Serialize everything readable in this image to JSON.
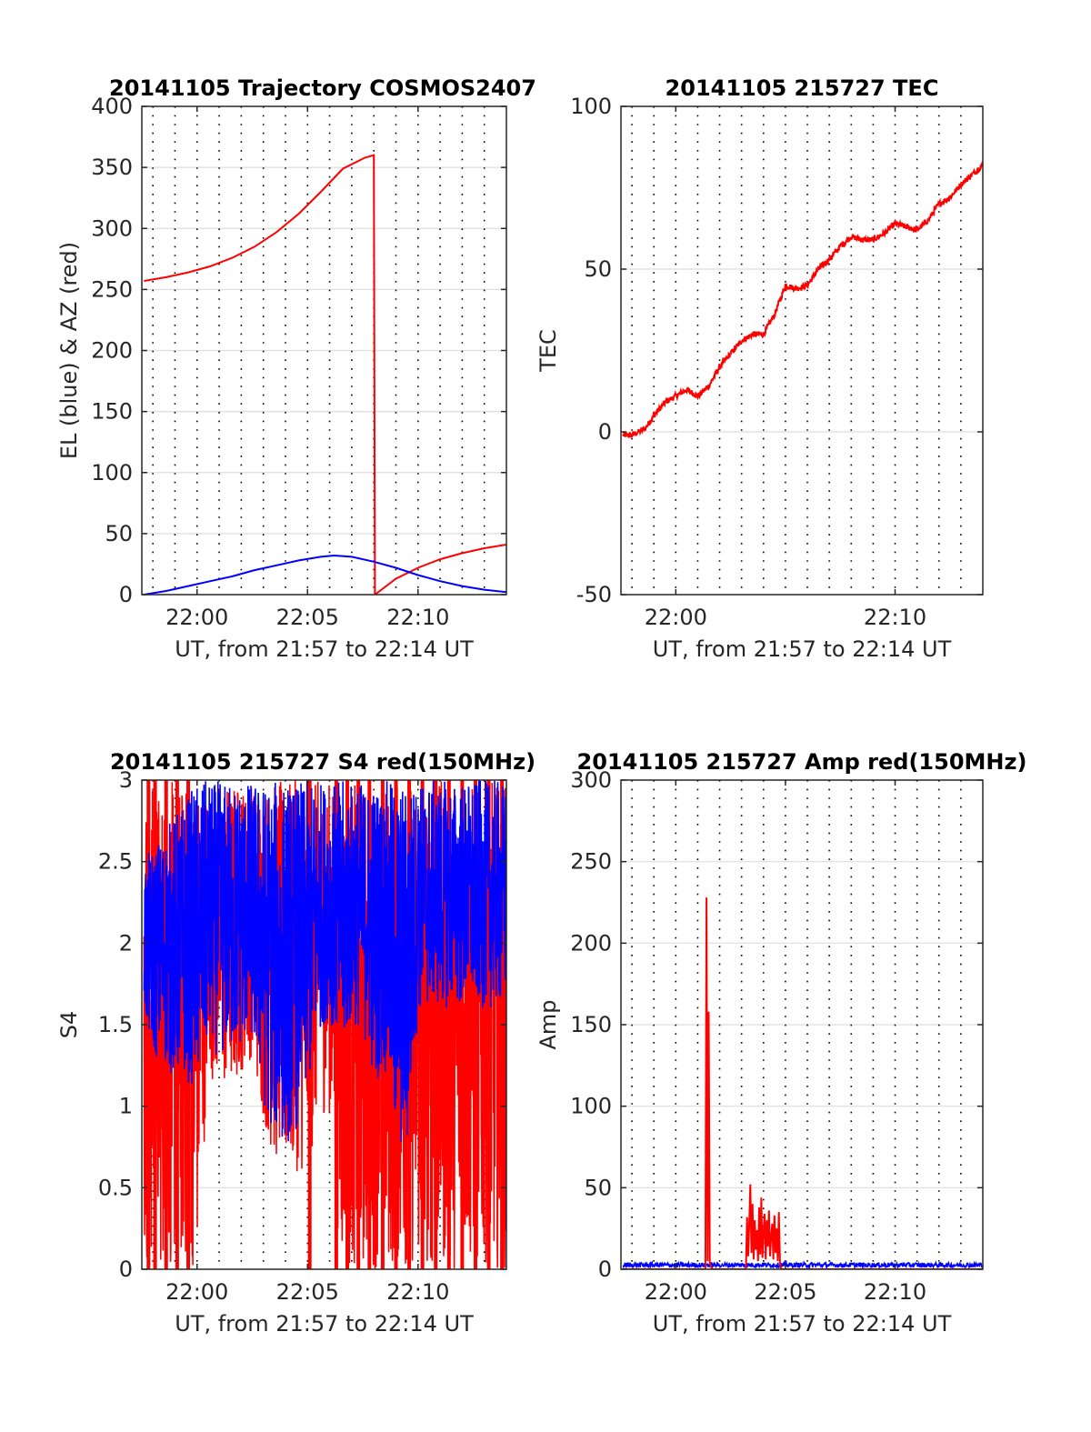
{
  "chart_data": [
    {
      "id": "trajectory",
      "type": "line",
      "title": "20141105 Trajectory COSMOS2407",
      "xlabel": "UT, from 21:57 to 22:14 UT",
      "ylabel": "EL (blue) & AZ (red)",
      "xlim_min": [
        1317.5,
        1334.0
      ],
      "ylim": [
        0,
        400
      ],
      "yticks": [
        0,
        50,
        100,
        150,
        200,
        250,
        300,
        350,
        400
      ],
      "ytick_labels": [
        "0",
        "50",
        "100",
        "150",
        "200",
        "250",
        "300",
        "350",
        "400"
      ],
      "xtick_labels": [
        "22:00",
        "22:05",
        "22:10"
      ],
      "xticks_min": [
        1320,
        1325,
        1330
      ],
      "grid": true,
      "minor_x_grid_step_min": 1,
      "series": [
        {
          "color": "#ff0000",
          "kind": "line",
          "x": [
            1317.6,
            1318.6,
            1319.6,
            1320.6,
            1321.6,
            1322.6,
            1323.6,
            1324.6,
            1325.6,
            1326.6,
            1327.6,
            1328.0,
            1328.05,
            1329.0,
            1330.0,
            1331.0,
            1332.0,
            1333.0,
            1334.0
          ],
          "y": [
            257,
            260,
            264,
            269,
            276,
            285,
            297,
            312,
            330,
            349,
            358,
            360,
            0,
            13,
            22,
            29,
            34,
            38,
            41
          ]
        },
        {
          "color": "#0000ff",
          "kind": "line",
          "x": [
            1317.6,
            1318.6,
            1319.6,
            1320.6,
            1321.6,
            1322.6,
            1323.6,
            1324.6,
            1325.6,
            1326.2,
            1327.0,
            1328.0,
            1329.0,
            1330.0,
            1331.0,
            1332.0,
            1333.0,
            1334.0
          ],
          "y": [
            0,
            3,
            7,
            11,
            15,
            20,
            24,
            28,
            31,
            32,
            31,
            27,
            22,
            16,
            11,
            7,
            4,
            2
          ]
        }
      ]
    },
    {
      "id": "tec",
      "type": "line",
      "title": "20141105 215727 TEC",
      "xlabel": "UT, from 21:57 to 22:14 UT",
      "ylabel": "TEC",
      "xlim_min": [
        1317.5,
        1334.0
      ],
      "ylim": [
        -50,
        100
      ],
      "yticks": [
        -50,
        0,
        50,
        100
      ],
      "ytick_labels": [
        "-50",
        "0",
        "50",
        "100"
      ],
      "xtick_labels": [
        "22:00",
        "22:10"
      ],
      "xticks_min": [
        1320,
        1330
      ],
      "grid": true,
      "minor_x_grid_step_min": 1,
      "series": [
        {
          "color": "#ff0000",
          "kind": "line",
          "x": [
            1317.6,
            1318.0,
            1318.6,
            1319.0,
            1319.5,
            1320.0,
            1320.5,
            1321.0,
            1321.5,
            1322.0,
            1322.5,
            1323.0,
            1323.5,
            1324.0,
            1324.5,
            1325.0,
            1325.5,
            1326.0,
            1326.5,
            1327.0,
            1327.5,
            1328.0,
            1328.5,
            1329.0,
            1329.5,
            1330.0,
            1330.5,
            1331.0,
            1331.5,
            1332.0,
            1332.5,
            1333.0,
            1333.5,
            1334.0
          ],
          "y": [
            -1,
            -1,
            1,
            5,
            9,
            11,
            13,
            11,
            14,
            20,
            24,
            28,
            30,
            30,
            36,
            45,
            44,
            45,
            50,
            53,
            57,
            60,
            59,
            59,
            61,
            64,
            63,
            62,
            65,
            70,
            72,
            76,
            79,
            82
          ]
        }
      ]
    },
    {
      "id": "s4",
      "type": "line",
      "title": "20141105 215727 S4 red(150MHz)",
      "xlabel": "UT, from 21:57 to 22:14 UT",
      "ylabel": "S4",
      "xlim_min": [
        1317.5,
        1334.0
      ],
      "ylim": [
        0,
        3
      ],
      "yticks": [
        0,
        0.5,
        1,
        1.5,
        2,
        2.5,
        3
      ],
      "ytick_labels": [
        "0",
        "0.5",
        "1",
        "1.5",
        "2",
        "2.5",
        "3"
      ],
      "xtick_labels": [
        "22:00",
        "22:05",
        "22:10"
      ],
      "xticks_min": [
        1320,
        1325,
        1330
      ],
      "grid": true,
      "minor_x_grid_step_min": 1,
      "series": [
        {
          "color": "#ff0000",
          "kind": "band",
          "x": [
            1317.6,
            1318.0,
            1318.5,
            1319.0,
            1319.5,
            1320.0,
            1320.5,
            1321.0,
            1321.5,
            1322.0,
            1322.5,
            1323.0,
            1323.5,
            1324.0,
            1324.5,
            1325.0,
            1325.5,
            1326.0,
            1326.5,
            1327.0,
            1327.5,
            1328.0,
            1328.5,
            1329.0,
            1329.5,
            1330.0,
            1330.5,
            1331.0,
            1331.5,
            1332.0,
            1332.5,
            1333.0,
            1333.5,
            1334.0
          ],
          "low": [
            0,
            0,
            0,
            0,
            0,
            0,
            1.2,
            1.1,
            1.05,
            1.2,
            1.3,
            0.9,
            0.65,
            0.55,
            0.6,
            0.55,
            0.95,
            0.95,
            0,
            0,
            0,
            0,
            0,
            0,
            0,
            0,
            0,
            0,
            0,
            0,
            0,
            0,
            0,
            0
          ],
          "high": [
            3,
            3,
            3,
            3,
            3,
            3,
            3,
            3,
            3,
            3,
            3,
            3,
            3,
            3,
            3,
            3,
            3,
            3,
            3,
            3,
            3,
            3,
            3,
            3,
            3,
            3,
            3,
            3,
            3,
            3,
            3,
            3,
            3,
            3
          ],
          "spike_x": [
            1317.8,
            1318.1,
            1318.6,
            1319.1,
            1319.6,
            1325.1,
            1326.3,
            1326.8,
            1327.3,
            1327.8,
            1328.4,
            1329.0,
            1329.6,
            1330.2,
            1330.8,
            1331.4,
            1332.0,
            1332.6,
            1333.2,
            1333.8
          ]
        },
        {
          "color": "#0000ff",
          "kind": "band",
          "x": [
            1317.6,
            1318.0,
            1318.5,
            1319.0,
            1319.5,
            1320.0,
            1320.5,
            1321.0,
            1321.5,
            1322.0,
            1322.5,
            1323.0,
            1323.5,
            1324.0,
            1324.5,
            1325.0,
            1325.5,
            1326.0,
            1326.5,
            1327.0,
            1327.5,
            1328.0,
            1328.5,
            1329.0,
            1329.5,
            1330.0,
            1330.5,
            1331.0,
            1331.5,
            1332.0,
            1332.5,
            1333.0,
            1333.5,
            1334.0
          ],
          "low": [
            1.5,
            1.3,
            1.25,
            1.15,
            1.15,
            1.1,
            1.35,
            1.3,
            1.3,
            1.35,
            1.4,
            1.0,
            0.8,
            0.75,
            0.85,
            1.05,
            1.45,
            1.55,
            1.25,
            1.5,
            1.45,
            1.15,
            1.2,
            0.75,
            0.65,
            1.55,
            1.6,
            1.6,
            1.6,
            1.6,
            1.6,
            1.6,
            1.6,
            1.6
          ],
          "high": [
            2.5,
            2.6,
            2.7,
            2.8,
            2.9,
            3,
            3,
            3,
            3,
            3,
            3,
            3,
            3,
            3,
            3,
            3,
            3,
            3,
            3,
            3,
            3,
            3,
            3,
            3,
            3,
            3,
            3,
            3,
            3,
            3,
            3,
            3,
            3,
            3
          ]
        }
      ]
    },
    {
      "id": "amp",
      "type": "line",
      "title": "20141105 215727 Amp red(150MHz)",
      "xlabel": "UT, from 21:57 to 22:14 UT",
      "ylabel": "Amp",
      "xlim_min": [
        1317.5,
        1334.0
      ],
      "ylim": [
        0,
        300
      ],
      "yticks": [
        0,
        50,
        100,
        150,
        200,
        250,
        300
      ],
      "ytick_labels": [
        "0",
        "50",
        "100",
        "150",
        "200",
        "250",
        "300"
      ],
      "xtick_labels": [
        "22:00",
        "22:05",
        "22:10"
      ],
      "xticks_min": [
        1320,
        1325,
        1330
      ],
      "grid": true,
      "minor_x_grid_step_min": 1,
      "series": [
        {
          "color": "#0000ff",
          "kind": "noise",
          "base": 2,
          "amplitude": 3
        },
        {
          "color": "#ff0000",
          "kind": "line",
          "x": [
            1317.6,
            1321.35,
            1321.4,
            1321.45,
            1321.5,
            1321.55,
            1321.6,
            1321.65,
            1323.2,
            1323.25,
            1323.3,
            1323.35,
            1323.4,
            1323.45,
            1323.5,
            1323.55,
            1323.6,
            1323.65,
            1323.7,
            1323.75,
            1323.8,
            1323.85,
            1323.9,
            1323.95,
            1324.0,
            1324.05,
            1324.1,
            1324.15,
            1324.2,
            1324.25,
            1324.3,
            1324.35,
            1324.4,
            1324.45,
            1324.5,
            1324.55,
            1324.6,
            1324.65,
            1324.7,
            1324.75,
            1324.8,
            1334.0
          ],
          "y": [
            0,
            0,
            228,
            5,
            158,
            4,
            2,
            0,
            0,
            32,
            8,
            28,
            52,
            10,
            40,
            6,
            30,
            12,
            24,
            5,
            38,
            9,
            44,
            7,
            22,
            34,
            6,
            30,
            14,
            36,
            8,
            20,
            28,
            6,
            33,
            10,
            25,
            5,
            35,
            4,
            0,
            0
          ]
        }
      ]
    }
  ]
}
